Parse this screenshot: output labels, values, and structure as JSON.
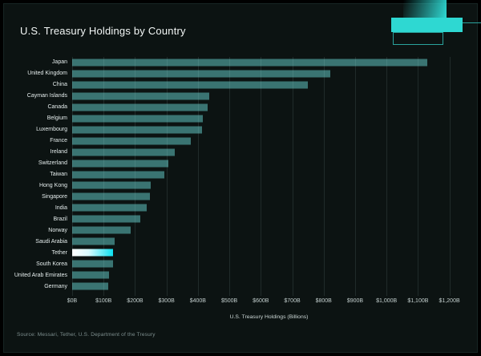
{
  "title": "U.S. Treasury Holdings by Country",
  "source": "Source: Messari, Tether, U.S. Department of the Tresury",
  "colors": {
    "page_bg": "#000000",
    "canvas_bg": "#0c1312",
    "title_text": "#f3f7f6",
    "label_text": "#e4ecec",
    "tick_text": "#c3cfce",
    "axis_title_text": "#ccd7d6",
    "source_text": "#7f9090",
    "bar": "#3a7472",
    "highlight_start": "#ffffff",
    "highlight_mid": "#d9fbff",
    "highlight_end": "#0ce0f0",
    "accent": "#2ed8d2",
    "grid": "rgba(170,212,210,0.13)"
  },
  "chart_data": {
    "type": "bar",
    "orientation": "horizontal",
    "title": "U.S. Treasury Holdings by Country",
    "xlabel": "U.S. Treasury Holdings (Billions)",
    "ylabel": "",
    "xlim": [
      0,
      1200
    ],
    "grid": true,
    "categories": [
      "Japan",
      "United Kingdom",
      "China",
      "Cayman Islands",
      "Canada",
      "Belgium",
      "Luxembourg",
      "France",
      "Ireland",
      "Switzerland",
      "Taiwan",
      "Hong Kong",
      "Singapore",
      "India",
      "Brazil",
      "Norway",
      "Saudi Arabia",
      "Tether",
      "South Korea",
      "United Arab Emirates",
      "Germany"
    ],
    "values": [
      1130,
      820,
      750,
      437,
      430,
      415,
      412,
      378,
      327,
      307,
      294,
      251,
      247,
      236,
      218,
      186,
      134,
      131,
      129,
      117,
      114
    ],
    "highlight_category": "Tether",
    "x_tick_values": [
      0,
      100,
      200,
      300,
      400,
      500,
      600,
      700,
      800,
      900,
      1000,
      1100,
      1200
    ],
    "x_ticks": [
      "$0B",
      "$100B",
      "$200B",
      "$300B",
      "$400B",
      "$500B",
      "$600B",
      "$700B",
      "$800B",
      "$900B",
      "$1,000B",
      "$1,100B",
      "$1,200B"
    ]
  }
}
